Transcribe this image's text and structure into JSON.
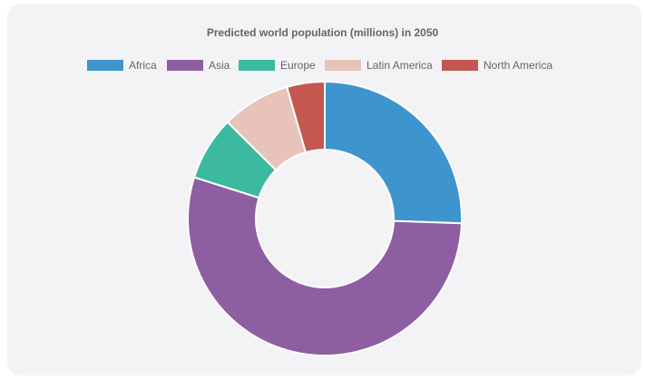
{
  "chart_data": {
    "type": "pie",
    "variant": "doughnut",
    "title": "Predicted world population (millions) in 2050",
    "categories": [
      "Africa",
      "Asia",
      "Europe",
      "Latin America",
      "North America"
    ],
    "values": [
      2478,
      5267,
      734,
      784,
      433
    ],
    "colors": [
      "#3e95cd",
      "#8e5ea2",
      "#3cba9f",
      "#e8c3b9",
      "#c45850"
    ],
    "legend": "top"
  }
}
